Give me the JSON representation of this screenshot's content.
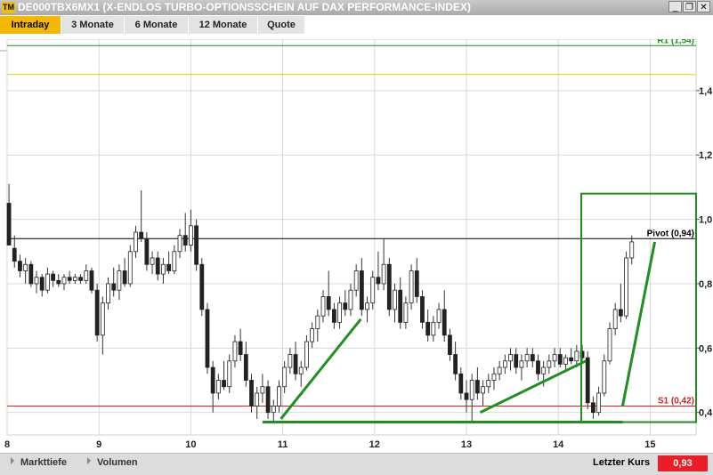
{
  "window": {
    "logo": "TM",
    "title": "DE000TBX6MX1 (X-ENDLOS TURBO-OPTIONSSCHEIN AUF DAX PERFORMANCE-INDEX)",
    "minimize_glyph": "_",
    "restore_glyph": "❐",
    "close_glyph": "✕"
  },
  "tabs": [
    {
      "label": "Intraday",
      "active": true
    },
    {
      "label": "3 Monate",
      "active": false
    },
    {
      "label": "6 Monate",
      "active": false
    },
    {
      "label": "12 Monate",
      "active": false
    },
    {
      "label": "Quote",
      "active": false
    }
  ],
  "bottom": {
    "markttiefe": "Markttiefe",
    "volumen": "Volumen",
    "last_label": "Letzter Kurs",
    "last_value": "0,93"
  },
  "colors": {
    "accent": "#f5b800",
    "green": "#1f8f1f",
    "red": "#ee1c24",
    "yellow": "#e6d200"
  },
  "chart_data": {
    "type": "candlestick",
    "x_ticks": [
      "8",
      "9",
      "10",
      "11",
      "12",
      "13",
      "14",
      "15"
    ],
    "y_ticks": [
      0.4,
      0.6,
      0.8,
      1.0,
      1.2,
      1.4
    ],
    "y_tick_labels": [
      "0,4",
      "0,6",
      "0,8",
      "1,0",
      "1,2",
      "1,4"
    ],
    "ylim": [
      0.33,
      1.56
    ],
    "xlim": [
      8,
      15.5
    ],
    "grid": true,
    "levels": [
      {
        "label": "R1 (1,54)",
        "value": 1.54,
        "color": "#1f8f1f"
      },
      {
        "label": "",
        "value": 1.45,
        "color": "#e6d200"
      },
      {
        "label": "Pivot (0,94)",
        "value": 0.94,
        "color": "#000000"
      },
      {
        "label": "S1 (0,42)",
        "value": 0.42,
        "color": "#d42020"
      }
    ],
    "candles": [
      [
        8.02,
        1.05,
        1.11,
        0.93,
        0.92
      ],
      [
        8.08,
        0.91,
        0.95,
        0.85,
        0.87
      ],
      [
        8.14,
        0.87,
        0.89,
        0.82,
        0.84
      ],
      [
        8.2,
        0.84,
        0.88,
        0.8,
        0.86
      ],
      [
        8.26,
        0.86,
        0.87,
        0.79,
        0.8
      ],
      [
        8.32,
        0.8,
        0.84,
        0.77,
        0.82
      ],
      [
        8.38,
        0.82,
        0.83,
        0.76,
        0.78
      ],
      [
        8.44,
        0.78,
        0.85,
        0.77,
        0.83
      ],
      [
        8.5,
        0.83,
        0.84,
        0.79,
        0.81
      ],
      [
        8.56,
        0.81,
        0.83,
        0.79,
        0.8
      ],
      [
        8.62,
        0.8,
        0.83,
        0.78,
        0.82
      ],
      [
        8.68,
        0.82,
        0.84,
        0.8,
        0.81
      ],
      [
        8.74,
        0.81,
        0.83,
        0.8,
        0.82
      ],
      [
        8.8,
        0.82,
        0.83,
        0.8,
        0.81
      ],
      [
        8.86,
        0.81,
        0.86,
        0.8,
        0.84
      ],
      [
        8.92,
        0.84,
        0.85,
        0.77,
        0.78
      ],
      [
        8.98,
        0.78,
        0.8,
        0.62,
        0.64
      ],
      [
        9.04,
        0.64,
        0.76,
        0.58,
        0.74
      ],
      [
        9.1,
        0.74,
        0.82,
        0.72,
        0.8
      ],
      [
        9.16,
        0.8,
        0.85,
        0.76,
        0.78
      ],
      [
        9.22,
        0.78,
        0.86,
        0.75,
        0.84
      ],
      [
        9.28,
        0.84,
        0.88,
        0.79,
        0.8
      ],
      [
        9.34,
        0.8,
        0.92,
        0.79,
        0.9
      ],
      [
        9.4,
        0.9,
        0.98,
        0.88,
        0.96
      ],
      [
        9.46,
        0.96,
        1.09,
        0.93,
        0.94
      ],
      [
        9.52,
        0.94,
        0.96,
        0.84,
        0.86
      ],
      [
        9.58,
        0.86,
        0.9,
        0.83,
        0.88
      ],
      [
        9.64,
        0.88,
        0.9,
        0.81,
        0.83
      ],
      [
        9.7,
        0.83,
        0.88,
        0.8,
        0.86
      ],
      [
        9.76,
        0.86,
        0.9,
        0.83,
        0.84
      ],
      [
        9.82,
        0.84,
        0.92,
        0.83,
        0.9
      ],
      [
        9.88,
        0.9,
        0.97,
        0.88,
        0.95
      ],
      [
        9.94,
        0.95,
        1.02,
        0.9,
        0.92
      ],
      [
        10.0,
        0.92,
        1.03,
        0.9,
        0.98
      ],
      [
        10.06,
        0.98,
        1.0,
        0.84,
        0.86
      ],
      [
        10.12,
        0.86,
        0.88,
        0.7,
        0.72
      ],
      [
        10.18,
        0.72,
        0.74,
        0.52,
        0.54
      ],
      [
        10.24,
        0.54,
        0.56,
        0.4,
        0.46
      ],
      [
        10.3,
        0.46,
        0.52,
        0.44,
        0.5
      ],
      [
        10.36,
        0.5,
        0.56,
        0.47,
        0.48
      ],
      [
        10.42,
        0.48,
        0.58,
        0.46,
        0.56
      ],
      [
        10.48,
        0.56,
        0.64,
        0.54,
        0.62
      ],
      [
        10.54,
        0.62,
        0.66,
        0.56,
        0.58
      ],
      [
        10.6,
        0.58,
        0.62,
        0.48,
        0.5
      ],
      [
        10.66,
        0.5,
        0.52,
        0.4,
        0.42
      ],
      [
        10.72,
        0.42,
        0.48,
        0.38,
        0.46
      ],
      [
        10.78,
        0.46,
        0.52,
        0.43,
        0.48
      ],
      [
        10.84,
        0.48,
        0.5,
        0.38,
        0.4
      ],
      [
        10.9,
        0.4,
        0.44,
        0.37,
        0.42
      ],
      [
        10.96,
        0.42,
        0.5,
        0.4,
        0.48
      ],
      [
        11.02,
        0.48,
        0.56,
        0.46,
        0.54
      ],
      [
        11.08,
        0.54,
        0.6,
        0.52,
        0.58
      ],
      [
        11.14,
        0.58,
        0.62,
        0.5,
        0.52
      ],
      [
        11.2,
        0.52,
        0.56,
        0.48,
        0.54
      ],
      [
        11.26,
        0.54,
        0.64,
        0.53,
        0.62
      ],
      [
        11.32,
        0.62,
        0.68,
        0.6,
        0.66
      ],
      [
        11.38,
        0.66,
        0.72,
        0.62,
        0.7
      ],
      [
        11.44,
        0.7,
        0.78,
        0.68,
        0.76
      ],
      [
        11.5,
        0.76,
        0.84,
        0.7,
        0.72
      ],
      [
        11.56,
        0.72,
        0.74,
        0.66,
        0.68
      ],
      [
        11.62,
        0.68,
        0.76,
        0.66,
        0.74
      ],
      [
        11.68,
        0.74,
        0.78,
        0.7,
        0.72
      ],
      [
        11.74,
        0.72,
        0.8,
        0.7,
        0.78
      ],
      [
        11.8,
        0.78,
        0.86,
        0.76,
        0.84
      ],
      [
        11.86,
        0.84,
        0.88,
        0.7,
        0.72
      ],
      [
        11.92,
        0.72,
        0.76,
        0.68,
        0.74
      ],
      [
        11.98,
        0.74,
        0.84,
        0.72,
        0.82
      ],
      [
        12.04,
        0.82,
        0.9,
        0.78,
        0.8
      ],
      [
        12.1,
        0.8,
        0.94,
        0.78,
        0.86
      ],
      [
        12.16,
        0.86,
        0.88,
        0.7,
        0.72
      ],
      [
        12.22,
        0.72,
        0.8,
        0.68,
        0.78
      ],
      [
        12.28,
        0.78,
        0.82,
        0.66,
        0.68
      ],
      [
        12.34,
        0.68,
        0.76,
        0.66,
        0.74
      ],
      [
        12.4,
        0.74,
        0.86,
        0.72,
        0.84
      ],
      [
        12.46,
        0.84,
        0.88,
        0.74,
        0.76
      ],
      [
        12.52,
        0.76,
        0.78,
        0.66,
        0.68
      ],
      [
        12.58,
        0.68,
        0.72,
        0.62,
        0.64
      ],
      [
        12.64,
        0.64,
        0.7,
        0.62,
        0.68
      ],
      [
        12.7,
        0.68,
        0.74,
        0.66,
        0.72
      ],
      [
        12.76,
        0.72,
        0.78,
        0.62,
        0.64
      ],
      [
        12.82,
        0.64,
        0.66,
        0.56,
        0.58
      ],
      [
        12.88,
        0.58,
        0.62,
        0.5,
        0.52
      ],
      [
        12.94,
        0.52,
        0.54,
        0.44,
        0.46
      ],
      [
        13.0,
        0.46,
        0.5,
        0.4,
        0.44
      ],
      [
        13.06,
        0.44,
        0.52,
        0.37,
        0.5
      ],
      [
        13.12,
        0.5,
        0.54,
        0.44,
        0.46
      ],
      [
        13.18,
        0.46,
        0.5,
        0.42,
        0.48
      ],
      [
        13.24,
        0.48,
        0.52,
        0.46,
        0.5
      ],
      [
        13.3,
        0.5,
        0.54,
        0.47,
        0.52
      ],
      [
        13.36,
        0.52,
        0.56,
        0.5,
        0.54
      ],
      [
        13.42,
        0.54,
        0.58,
        0.52,
        0.56
      ],
      [
        13.48,
        0.56,
        0.6,
        0.53,
        0.58
      ],
      [
        13.54,
        0.58,
        0.6,
        0.52,
        0.54
      ],
      [
        13.6,
        0.54,
        0.58,
        0.5,
        0.56
      ],
      [
        13.66,
        0.56,
        0.6,
        0.54,
        0.58
      ],
      [
        13.72,
        0.58,
        0.6,
        0.54,
        0.56
      ],
      [
        13.78,
        0.56,
        0.58,
        0.5,
        0.52
      ],
      [
        13.84,
        0.52,
        0.56,
        0.48,
        0.54
      ],
      [
        13.9,
        0.54,
        0.58,
        0.52,
        0.56
      ],
      [
        13.96,
        0.56,
        0.6,
        0.54,
        0.58
      ],
      [
        14.02,
        0.58,
        0.6,
        0.54,
        0.55
      ],
      [
        14.08,
        0.55,
        0.58,
        0.53,
        0.57
      ],
      [
        14.14,
        0.57,
        0.6,
        0.55,
        0.56
      ],
      [
        14.2,
        0.56,
        0.61,
        0.54,
        0.59
      ],
      [
        14.26,
        0.59,
        0.61,
        0.56,
        0.57
      ],
      [
        14.32,
        0.57,
        0.59,
        0.41,
        0.43
      ],
      [
        14.38,
        0.43,
        0.45,
        0.38,
        0.4
      ],
      [
        14.44,
        0.4,
        0.48,
        0.39,
        0.46
      ],
      [
        14.5,
        0.46,
        0.58,
        0.45,
        0.56
      ],
      [
        14.56,
        0.56,
        0.68,
        0.55,
        0.66
      ],
      [
        14.62,
        0.66,
        0.74,
        0.64,
        0.72
      ],
      [
        14.68,
        0.72,
        0.8,
        0.68,
        0.7
      ],
      [
        14.74,
        0.7,
        0.9,
        0.69,
        0.88
      ],
      [
        14.8,
        0.88,
        0.95,
        0.86,
        0.93
      ]
    ],
    "trend_lines": [
      [
        [
          10.98,
          0.38
        ],
        [
          11.85,
          0.69
        ]
      ],
      [
        [
          13.15,
          0.4
        ],
        [
          14.3,
          0.56
        ]
      ],
      [
        [
          14.7,
          0.42
        ],
        [
          15.05,
          0.93
        ]
      ],
      [
        [
          10.78,
          0.37
        ],
        [
          14.7,
          0.37
        ]
      ]
    ],
    "highlight_box": {
      "x0": 14.25,
      "x1": 15.5,
      "y0": 0.37,
      "y1": 1.08
    }
  }
}
